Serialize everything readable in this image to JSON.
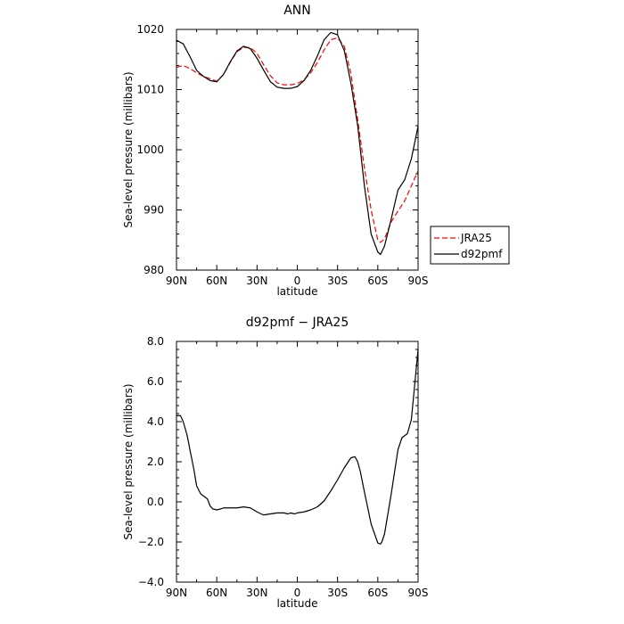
{
  "chart_data": [
    {
      "type": "line",
      "title": "ANN",
      "xlabel": "latitude",
      "ylabel": "Sea-level pressure (millibars)",
      "xlim": [
        90,
        -90
      ],
      "ylim": [
        980,
        1020
      ],
      "x_ticks": [
        90,
        60,
        30,
        0,
        -30,
        -60,
        -90
      ],
      "x_tick_labels": [
        "90N",
        "60N",
        "30N",
        "0",
        "30S",
        "60S",
        "90S"
      ],
      "y_ticks": [
        980,
        990,
        1000,
        1010,
        1020
      ],
      "y_tick_labels": [
        "980",
        "990",
        "1000",
        "1010",
        "1020"
      ],
      "legend": {
        "placement": "right"
      },
      "series": [
        {
          "name": "JRA25",
          "color": "#ff0000",
          "dash": "dashed",
          "x": [
            90,
            85,
            80,
            75,
            70,
            65,
            60,
            55,
            50,
            45,
            40,
            35,
            30,
            25,
            20,
            15,
            10,
            5,
            0,
            -5,
            -10,
            -15,
            -20,
            -25,
            -30,
            -35,
            -40,
            -45,
            -50,
            -55,
            -60,
            -62,
            -65,
            -70,
            -75,
            -80,
            -85,
            -90
          ],
          "y": [
            1013.7,
            1014.0,
            1013.5,
            1012.8,
            1012.2,
            1011.8,
            1011.4,
            1012.5,
            1014.5,
            1016.3,
            1017.0,
            1017.0,
            1016.0,
            1014.1,
            1012.3,
            1011.1,
            1010.8,
            1010.8,
            1011.0,
            1011.6,
            1012.8,
            1014.5,
            1016.6,
            1018.3,
            1018.6,
            1017.2,
            1012.6,
            1005.0,
            997.0,
            990.0,
            985.0,
            984.6,
            985.2,
            988.0,
            989.8,
            991.5,
            994.0,
            996.5
          ]
        },
        {
          "name": "d92pmf",
          "color": "#000000",
          "dash": "solid",
          "x": [
            90,
            85,
            80,
            75,
            70,
            65,
            60,
            55,
            50,
            45,
            40,
            35,
            30,
            25,
            20,
            15,
            10,
            5,
            0,
            -5,
            -10,
            -15,
            -20,
            -25,
            -30,
            -35,
            -40,
            -45,
            -50,
            -55,
            -60,
            -62,
            -65,
            -70,
            -75,
            -80,
            -85,
            -90
          ],
          "y": [
            1018.2,
            1017.6,
            1015.5,
            1013.2,
            1012.2,
            1011.5,
            1011.3,
            1012.5,
            1014.6,
            1016.4,
            1017.2,
            1016.8,
            1015.2,
            1013.2,
            1011.3,
            1010.4,
            1010.2,
            1010.2,
            1010.5,
            1011.5,
            1013.2,
            1015.6,
            1018.3,
            1019.5,
            1019.1,
            1016.5,
            1011.0,
            1004.0,
            994.0,
            986.0,
            983.0,
            982.6,
            984.0,
            988.5,
            993.3,
            995.0,
            998.5,
            1003.9
          ]
        }
      ]
    },
    {
      "type": "line",
      "title": "d92pmf − JRA25",
      "xlabel": "latitude",
      "ylabel": "Sea-level pressure (millibars)",
      "xlim": [
        90,
        -90
      ],
      "ylim": [
        -4,
        8
      ],
      "x_ticks": [
        90,
        60,
        30,
        0,
        -30,
        -60,
        -90
      ],
      "x_tick_labels": [
        "90N",
        "60N",
        "30N",
        "0",
        "30S",
        "60S",
        "90S"
      ],
      "y_ticks": [
        -4,
        -2,
        0,
        2,
        4,
        6,
        8
      ],
      "y_tick_labels": [
        "−4.0",
        "−2.0",
        "0.0",
        "2.0",
        "4.0",
        "6.0",
        "8.0"
      ],
      "series": [
        {
          "color": "#000000",
          "dash": "solid",
          "x": [
            90,
            87,
            85,
            82,
            80,
            77,
            75,
            72,
            70,
            67,
            65,
            63,
            60,
            57,
            55,
            50,
            45,
            40,
            35,
            30,
            27,
            25,
            20,
            15,
            10,
            7,
            5,
            2,
            0,
            -5,
            -10,
            -15,
            -20,
            -25,
            -30,
            -35,
            -38,
            -40,
            -43,
            -45,
            -47,
            -50,
            -55,
            -60,
            -62,
            -63,
            -65,
            -70,
            -75,
            -78,
            -80,
            -82,
            -85,
            -87,
            -90
          ],
          "y": [
            4.3,
            4.3,
            4.0,
            3.3,
            2.6,
            1.6,
            0.8,
            0.4,
            0.3,
            0.15,
            -0.2,
            -0.35,
            -0.4,
            -0.35,
            -0.3,
            -0.3,
            -0.3,
            -0.25,
            -0.3,
            -0.5,
            -0.6,
            -0.65,
            -0.6,
            -0.55,
            -0.55,
            -0.6,
            -0.55,
            -0.6,
            -0.55,
            -0.5,
            -0.4,
            -0.25,
            0.05,
            0.55,
            1.1,
            1.7,
            2.0,
            2.2,
            2.25,
            2.0,
            1.5,
            0.5,
            -1.1,
            -2.05,
            -2.1,
            -2.0,
            -1.6,
            0.4,
            2.6,
            3.2,
            3.3,
            3.4,
            4.1,
            5.5,
            7.6
          ]
        }
      ]
    }
  ]
}
